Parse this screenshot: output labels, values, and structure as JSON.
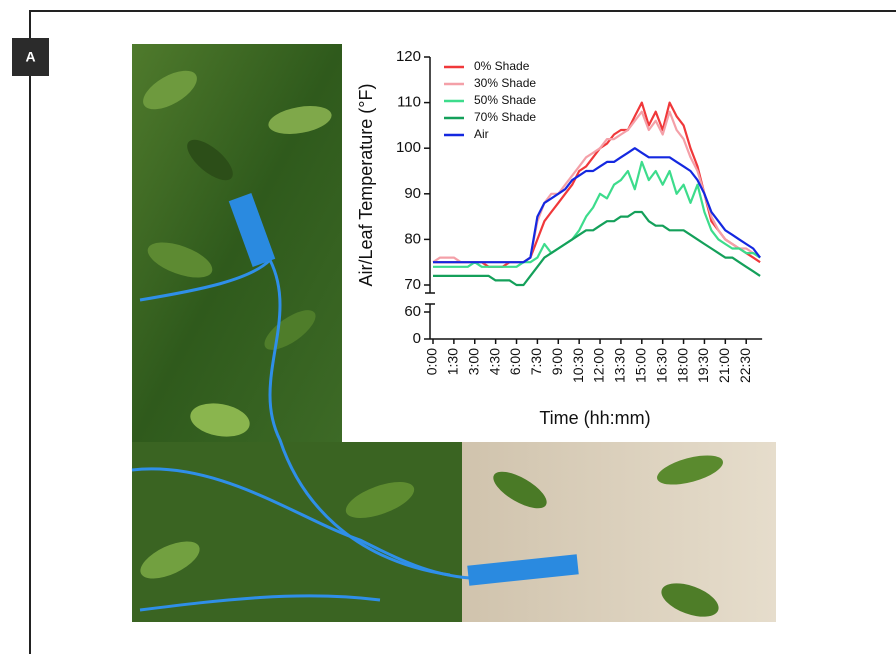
{
  "panel_label": "A",
  "chart_data": {
    "type": "line",
    "y_label": "Air/Leaf Temperature (°F)",
    "x_label": "Time (hh:mm)",
    "categories": [
      "0:00",
      null,
      null,
      "1:30",
      null,
      null,
      "3:00",
      null,
      null,
      "4:30",
      null,
      null,
      "6:00",
      null,
      null,
      "7:30",
      null,
      null,
      "9:00",
      null,
      null,
      "10:30",
      null,
      null,
      "12:00",
      null,
      null,
      "13:30",
      null,
      null,
      "15:00",
      null,
      null,
      "16:30",
      null,
      null,
      "18:00",
      null,
      null,
      "19:30",
      null,
      null,
      "21:00",
      null,
      null,
      "22:30",
      null,
      null
    ],
    "ylim": [
      0,
      120
    ],
    "yticks": [
      0,
      60,
      70,
      80,
      90,
      100,
      110,
      120
    ],
    "axis_break": [
      60,
      70
    ],
    "legend": "upper left",
    "series": [
      {
        "name": "0% Shade",
        "color": "#f0383a",
        "values": [
          75,
          75,
          75,
          75,
          75,
          75,
          75,
          75,
          74,
          74,
          74,
          75,
          75,
          75,
          76,
          80,
          84,
          86,
          88,
          90,
          92,
          95,
          96,
          98,
          100,
          101,
          103,
          104,
          104,
          107,
          110,
          105,
          108,
          104,
          110,
          107,
          105,
          100,
          96,
          90,
          84,
          82,
          80,
          79,
          78,
          77,
          76,
          75
        ]
      },
      {
        "name": "30% Shade",
        "color": "#f4a0a8",
        "values": [
          75,
          76,
          76,
          76,
          75,
          75,
          75,
          75,
          75,
          75,
          75,
          75,
          75,
          75,
          76,
          84,
          88,
          90,
          90,
          92,
          94,
          96,
          98,
          99,
          100,
          102,
          102,
          103,
          104,
          106,
          108,
          104,
          106,
          103,
          108,
          104,
          102,
          98,
          95,
          90,
          85,
          82,
          80,
          79,
          78,
          78,
          77,
          76
        ]
      },
      {
        "name": "50% Shade",
        "color": "#3ddc8c",
        "values": [
          74,
          74,
          74,
          74,
          74,
          74,
          75,
          74,
          74,
          74,
          74,
          74,
          74,
          75,
          75,
          76,
          79,
          77,
          78,
          79,
          80,
          82,
          85,
          87,
          90,
          89,
          92,
          93,
          95,
          91,
          97,
          93,
          95,
          92,
          95,
          90,
          92,
          88,
          92,
          86,
          82,
          80,
          79,
          78,
          78,
          77,
          77,
          76
        ]
      },
      {
        "name": "70% Shade",
        "color": "#14a05a",
        "values": [
          72,
          72,
          72,
          72,
          72,
          72,
          72,
          72,
          72,
          71,
          71,
          71,
          70,
          70,
          72,
          74,
          76,
          77,
          78,
          79,
          80,
          81,
          82,
          82,
          83,
          84,
          84,
          85,
          85,
          86,
          86,
          84,
          83,
          83,
          82,
          82,
          82,
          81,
          80,
          79,
          78,
          77,
          76,
          76,
          75,
          74,
          73,
          72
        ]
      },
      {
        "name": "Air",
        "color": "#1428e0",
        "values": [
          75,
          75,
          75,
          75,
          75,
          75,
          75,
          75,
          75,
          75,
          75,
          75,
          75,
          75,
          76,
          85,
          88,
          89,
          90,
          91,
          93,
          94,
          95,
          95,
          96,
          97,
          97,
          98,
          99,
          100,
          99,
          98,
          98,
          98,
          98,
          97,
          96,
          95,
          93,
          90,
          86,
          84,
          82,
          81,
          80,
          79,
          78,
          76
        ]
      }
    ]
  }
}
